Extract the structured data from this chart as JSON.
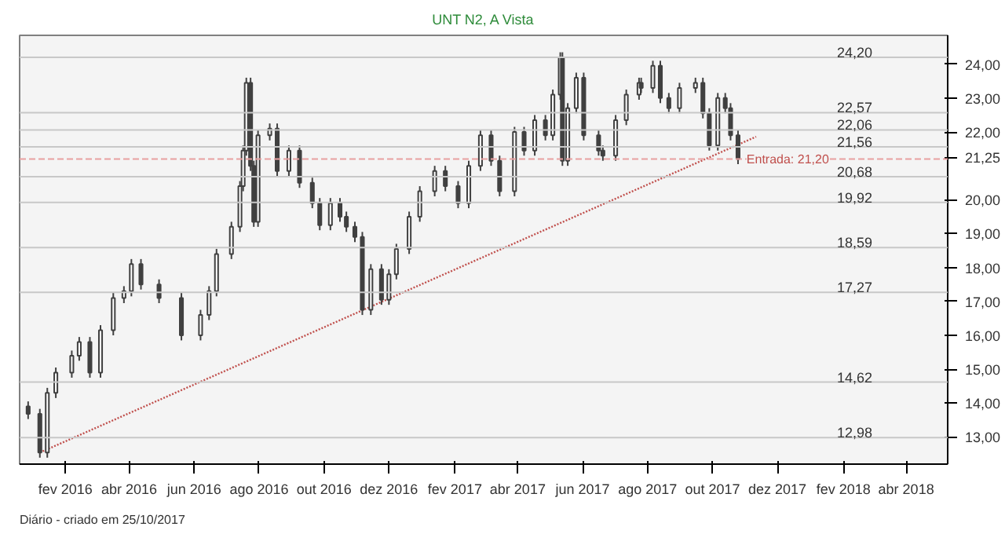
{
  "chart_data": {
    "type": "candlestick",
    "title": "UNT N2, A Vista",
    "annotations": [
      "Diário - criado em 25/10/2017"
    ],
    "x": [
      "2015-12-28",
      "2016-01-08",
      "2016-01-15",
      "2016-01-23",
      "2016-02-07",
      "2016-02-14",
      "2016-02-24",
      "2016-03-05",
      "2016-03-17",
      "2016-03-27",
      "2016-04-03",
      "2016-04-12",
      "2016-04-29",
      "2016-05-20",
      "2016-06-07",
      "2016-06-15",
      "2016-06-22",
      "2016-07-06",
      "2016-07-14",
      "2016-07-17",
      "2016-07-20",
      "2016-07-24",
      "2016-07-27",
      "2016-07-31",
      "2016-08-11",
      "2016-08-18",
      "2016-08-29",
      "2016-09-08",
      "2016-09-20",
      "2016-09-27",
      "2016-10-07",
      "2016-10-16",
      "2016-10-22",
      "2016-10-30",
      "2016-11-06",
      "2016-11-14",
      "2016-11-24",
      "2016-12-01",
      "2016-12-08",
      "2016-12-20",
      "2016-12-30",
      "2017-01-13",
      "2017-01-23",
      "2017-02-04",
      "2017-02-14",
      "2017-02-25",
      "2017-03-07",
      "2017-03-15",
      "2017-03-29",
      "2017-04-07",
      "2017-04-17",
      "2017-04-27",
      "2017-05-04",
      "2017-05-11",
      "2017-05-13",
      "2017-05-18",
      "2017-05-26",
      "2017-06-02",
      "2017-06-16",
      "2017-06-20",
      "2017-07-02",
      "2017-07-12",
      "2017-07-24",
      "2017-07-26",
      "2017-08-06",
      "2017-08-13",
      "2017-08-21",
      "2017-08-31",
      "2017-09-15",
      "2017-09-22",
      "2017-09-28",
      "2017-10-06",
      "2017-10-13",
      "2017-10-18",
      "2017-10-25"
    ],
    "color": "#404040",
    "ohlc": [
      [
        13.9,
        14.05,
        13.53,
        13.68
      ],
      [
        13.68,
        13.83,
        12.39,
        12.54
      ],
      [
        12.54,
        14.45,
        12.39,
        14.3
      ],
      [
        14.3,
        15.05,
        14.15,
        14.9
      ],
      [
        14.9,
        15.55,
        14.75,
        15.4
      ],
      [
        15.4,
        15.95,
        15.25,
        15.8
      ],
      [
        15.8,
        15.95,
        14.75,
        14.9
      ],
      [
        14.9,
        16.3,
        14.75,
        16.15
      ],
      [
        16.15,
        17.25,
        16.0,
        17.1
      ],
      [
        17.1,
        17.45,
        16.95,
        17.3
      ],
      [
        17.3,
        18.25,
        17.15,
        18.1
      ],
      [
        18.1,
        18.25,
        17.35,
        17.5
      ],
      [
        17.5,
        17.65,
        16.95,
        17.1
      ],
      [
        17.1,
        17.25,
        15.85,
        16.0
      ],
      [
        16.0,
        16.75,
        15.85,
        16.6
      ],
      [
        16.6,
        17.45,
        16.45,
        17.3
      ],
      [
        17.3,
        18.55,
        17.15,
        18.4
      ],
      [
        18.4,
        19.35,
        18.25,
        19.2
      ],
      [
        19.2,
        20.55,
        19.05,
        20.4
      ],
      [
        20.4,
        21.6,
        20.25,
        21.45
      ],
      [
        21.45,
        23.6,
        21.3,
        23.45
      ],
      [
        23.45,
        23.6,
        20.85,
        21.0
      ],
      [
        21.0,
        21.15,
        19.2,
        19.35
      ],
      [
        19.35,
        22.05,
        19.2,
        21.9
      ],
      [
        21.9,
        22.25,
        21.75,
        22.1
      ],
      [
        22.1,
        22.25,
        20.7,
        20.85
      ],
      [
        20.85,
        21.6,
        20.7,
        21.45
      ],
      [
        21.45,
        21.6,
        20.35,
        20.5
      ],
      [
        20.5,
        20.65,
        19.75,
        19.9
      ],
      [
        19.9,
        20.05,
        19.1,
        19.25
      ],
      [
        19.25,
        20.05,
        19.1,
        19.9
      ],
      [
        19.9,
        20.05,
        19.35,
        19.5
      ],
      [
        19.5,
        19.65,
        19.05,
        19.2
      ],
      [
        19.2,
        19.35,
        18.75,
        18.9
      ],
      [
        18.9,
        19.05,
        16.6,
        16.75
      ],
      [
        16.75,
        18.1,
        16.6,
        17.95
      ],
      [
        17.95,
        18.1,
        16.9,
        17.05
      ],
      [
        17.05,
        17.95,
        16.9,
        17.8
      ],
      [
        17.8,
        18.7,
        17.65,
        18.55
      ],
      [
        18.55,
        19.65,
        18.4,
        19.5
      ],
      [
        19.5,
        20.4,
        19.35,
        20.25
      ],
      [
        20.25,
        21.0,
        20.1,
        20.85
      ],
      [
        20.85,
        21.0,
        20.25,
        20.4
      ],
      [
        20.4,
        20.55,
        19.75,
        19.9
      ],
      [
        19.9,
        21.15,
        19.75,
        21.0
      ],
      [
        21.0,
        22.05,
        20.85,
        21.9
      ],
      [
        21.9,
        22.05,
        21.0,
        21.15
      ],
      [
        21.15,
        21.3,
        20.1,
        20.25
      ],
      [
        20.25,
        22.15,
        20.1,
        22.0
      ],
      [
        22.0,
        22.15,
        21.3,
        21.45
      ],
      [
        21.45,
        22.5,
        21.3,
        22.35
      ],
      [
        22.35,
        22.5,
        21.75,
        21.9
      ],
      [
        21.9,
        23.25,
        21.75,
        23.1
      ],
      [
        23.1,
        24.35,
        22.95,
        24.2
      ],
      [
        24.2,
        24.35,
        21.0,
        21.15
      ],
      [
        21.15,
        22.85,
        21.0,
        22.7
      ],
      [
        22.7,
        23.75,
        22.55,
        23.6
      ],
      [
        23.6,
        23.75,
        21.75,
        21.9
      ],
      [
        21.9,
        22.05,
        21.3,
        21.45
      ],
      [
        21.45,
        21.6,
        21.15,
        21.3
      ],
      [
        21.3,
        22.5,
        21.15,
        22.35
      ],
      [
        22.35,
        23.25,
        22.2,
        23.1
      ],
      [
        23.1,
        23.6,
        22.95,
        23.45
      ],
      [
        23.45,
        23.6,
        23.15,
        23.3
      ],
      [
        23.3,
        24.1,
        23.15,
        23.95
      ],
      [
        23.95,
        24.1,
        22.85,
        23.0
      ],
      [
        23.0,
        23.15,
        22.55,
        22.7
      ],
      [
        22.7,
        23.45,
        22.55,
        23.3
      ],
      [
        23.3,
        23.6,
        23.15,
        23.45
      ],
      [
        23.45,
        23.6,
        22.4,
        22.55
      ],
      [
        22.55,
        22.7,
        21.45,
        21.6
      ],
      [
        21.6,
        23.15,
        21.45,
        23.0
      ],
      [
        23.0,
        23.15,
        22.55,
        22.7
      ],
      [
        22.7,
        22.85,
        21.75,
        21.9
      ],
      [
        21.9,
        22.05,
        21.05,
        21.2
      ]
    ],
    "series": [
      {
        "type": "line",
        "x": [
          "2016-01-08",
          "2017-11-11"
        ],
        "values": [
          12.54,
          21.86
        ],
        "color": "#c0504d",
        "line_style": "dotted"
      }
    ],
    "ref_lines": [
      {
        "axis": "y",
        "value": 24.2,
        "label": "24,20",
        "color": "#c8c8c8",
        "line_style": "solid"
      },
      {
        "axis": "y",
        "value": 22.57,
        "label": "22,57",
        "color": "#c8c8c8",
        "line_style": "solid"
      },
      {
        "axis": "y",
        "value": 22.06,
        "label": "22,06",
        "color": "#c8c8c8",
        "line_style": "solid"
      },
      {
        "axis": "y",
        "value": 21.56,
        "label": "21,56",
        "color": "#c8c8c8",
        "line_style": "solid"
      },
      {
        "axis": "y",
        "value": 20.68,
        "label": "20,68",
        "color": "#c8c8c8",
        "line_style": "solid"
      },
      {
        "axis": "y",
        "value": 19.92,
        "label": "19,92",
        "color": "#c8c8c8",
        "line_style": "solid"
      },
      {
        "axis": "y",
        "value": 18.59,
        "label": "18,59",
        "color": "#c8c8c8",
        "line_style": "solid"
      },
      {
        "axis": "y",
        "value": 17.27,
        "label": "17,27",
        "color": "#c8c8c8",
        "line_style": "solid"
      },
      {
        "axis": "y",
        "value": 14.62,
        "label": "14,62",
        "color": "#c8c8c8",
        "line_style": "solid"
      },
      {
        "axis": "y",
        "value": 12.98,
        "label": "12,98",
        "color": "#c8c8c8",
        "line_style": "solid"
      },
      {
        "axis": "y",
        "value": 21.2,
        "label": "Entrada: 21,20",
        "color": "#e8a0a0",
        "line_style": "dashed"
      }
    ],
    "xlim": [
      "2015-12-20",
      "2018-05-10"
    ],
    "xticks": [
      {
        "value": "2016-02-01",
        "label": "fev 2016"
      },
      {
        "value": "2016-04-01",
        "label": "abr 2016"
      },
      {
        "value": "2016-06-01",
        "label": "jun 2016"
      },
      {
        "value": "2016-08-01",
        "label": "ago 2016"
      },
      {
        "value": "2016-10-01",
        "label": "out 2016"
      },
      {
        "value": "2016-12-01",
        "label": "dez 2016"
      },
      {
        "value": "2017-02-01",
        "label": "fev 2017"
      },
      {
        "value": "2017-04-01",
        "label": "abr 2017"
      },
      {
        "value": "2017-06-01",
        "label": "jun 2017"
      },
      {
        "value": "2017-08-01",
        "label": "ago 2017"
      },
      {
        "value": "2017-10-01",
        "label": "out 2017"
      },
      {
        "value": "2017-12-01",
        "label": "dez 2017"
      },
      {
        "value": "2018-02-01",
        "label": "fev 2018"
      },
      {
        "value": "2018-04-01",
        "label": "abr 2018"
      }
    ],
    "ylim": [
      12.2,
      24.85
    ],
    "yticks": [
      {
        "value": 13,
        "label": "13,00"
      },
      {
        "value": 14,
        "label": "14,00"
      },
      {
        "value": 15,
        "label": "15,00"
      },
      {
        "value": 16,
        "label": "16,00"
      },
      {
        "value": 17,
        "label": "17,00"
      },
      {
        "value": 18,
        "label": "18,00"
      },
      {
        "value": 19,
        "label": "19,00"
      },
      {
        "value": 20,
        "label": "20,00"
      },
      {
        "value": 21.25,
        "label": "21,25"
      },
      {
        "value": 22,
        "label": "22,00"
      },
      {
        "value": 23,
        "label": "23,00"
      },
      {
        "value": 24,
        "label": "24,00"
      }
    ],
    "grid": false
  }
}
